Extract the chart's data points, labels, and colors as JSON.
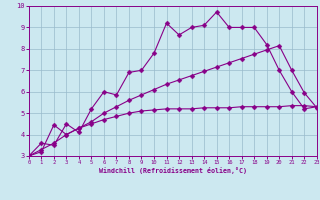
{
  "xlabel": "Windchill (Refroidissement éolien,°C)",
  "xlim": [
    0,
    23
  ],
  "ylim": [
    3,
    10
  ],
  "xticks": [
    0,
    1,
    2,
    3,
    4,
    5,
    6,
    7,
    8,
    9,
    10,
    11,
    12,
    13,
    14,
    15,
    16,
    17,
    18,
    19,
    20,
    21,
    22,
    23
  ],
  "yticks": [
    3,
    4,
    5,
    6,
    7,
    8,
    9,
    10
  ],
  "bg_color": "#cce8f0",
  "line_color": "#880088",
  "grid_color": "#99bbcc",
  "curve1_x": [
    0,
    1,
    2,
    3,
    4,
    5,
    6,
    7,
    8,
    9,
    10,
    11,
    12,
    13,
    14,
    15,
    16,
    17,
    18,
    19,
    20,
    21,
    22,
    23
  ],
  "curve1_y": [
    3.0,
    3.6,
    3.5,
    4.5,
    4.1,
    5.2,
    6.0,
    5.85,
    6.9,
    7.0,
    7.8,
    9.2,
    8.65,
    9.0,
    9.1,
    9.72,
    9.0,
    9.0,
    9.0,
    8.2,
    7.0,
    6.0,
    5.2,
    5.3
  ],
  "curve2_x": [
    0,
    1,
    2,
    3,
    4,
    5,
    6,
    7,
    8,
    9,
    10,
    11,
    12,
    13,
    14,
    15,
    16,
    17,
    18,
    19,
    20,
    21,
    22,
    23
  ],
  "curve2_y": [
    3.0,
    3.3,
    3.6,
    4.0,
    4.3,
    4.6,
    5.0,
    5.3,
    5.6,
    5.85,
    6.1,
    6.35,
    6.55,
    6.75,
    6.95,
    7.15,
    7.35,
    7.55,
    7.75,
    7.95,
    8.15,
    7.0,
    5.95,
    5.25
  ],
  "curve3_x": [
    0,
    1,
    2,
    3,
    4,
    5,
    6,
    7,
    8,
    9,
    10,
    11,
    12,
    13,
    14,
    15,
    16,
    17,
    18,
    19,
    20,
    21,
    22,
    23
  ],
  "curve3_y": [
    3.0,
    3.2,
    4.45,
    4.0,
    4.3,
    4.5,
    4.7,
    4.85,
    5.0,
    5.1,
    5.15,
    5.2,
    5.2,
    5.2,
    5.25,
    5.25,
    5.25,
    5.3,
    5.3,
    5.3,
    5.3,
    5.35,
    5.35,
    5.3
  ]
}
